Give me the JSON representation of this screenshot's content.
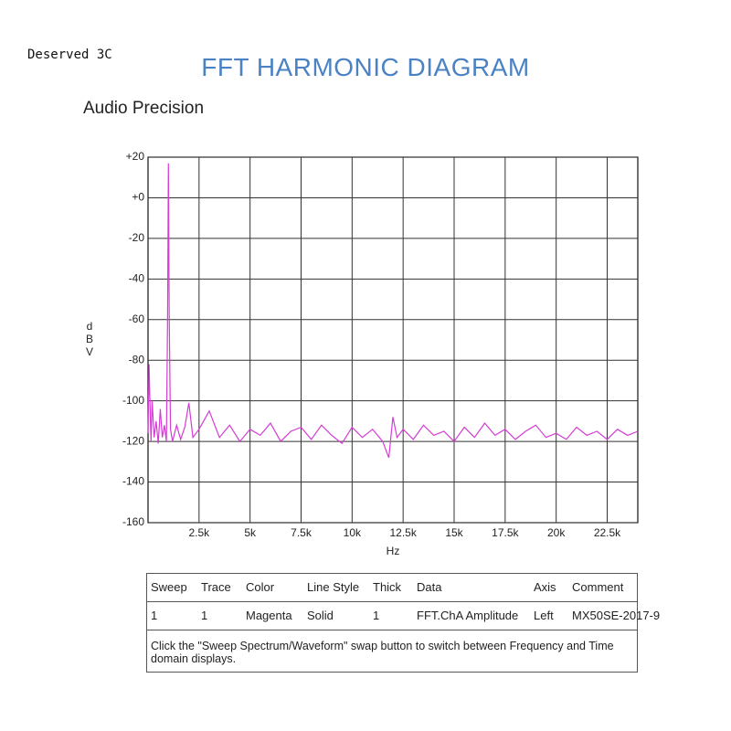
{
  "watermark": "Deserved 3C",
  "chart_data": {
    "type": "line",
    "title": "FFT  HARMONIC DIAGRAM",
    "subtitle": "Audio Precision",
    "x_label": "Hz",
    "y_label": "dBV",
    "color": "#d43cd4",
    "grid": true,
    "xlim": [
      0,
      24000
    ],
    "ylim": [
      -160,
      20
    ],
    "xticks": [
      {
        "value": 2500,
        "label": "2.5k"
      },
      {
        "value": 5000,
        "label": "5k"
      },
      {
        "value": 7500,
        "label": "7.5k"
      },
      {
        "value": 10000,
        "label": "10k"
      },
      {
        "value": 12500,
        "label": "12.5k"
      },
      {
        "value": 15000,
        "label": "15k"
      },
      {
        "value": 17500,
        "label": "17.5k"
      },
      {
        "value": 20000,
        "label": "20k"
      },
      {
        "value": 22500,
        "label": "22.5k"
      }
    ],
    "yticks": [
      {
        "value": 20,
        "label": "+20"
      },
      {
        "value": 0,
        "label": "+0"
      },
      -20,
      -40,
      -60,
      -80,
      -100,
      -120,
      -140,
      -160
    ],
    "x": [
      0,
      50,
      100,
      150,
      200,
      300,
      400,
      500,
      600,
      700,
      800,
      900,
      960,
      1000,
      1040,
      1100,
      1200,
      1400,
      1600,
      1800,
      2000,
      2200,
      2500,
      3000,
      3500,
      4000,
      4500,
      5000,
      5500,
      6000,
      6500,
      7000,
      7500,
      8000,
      8500,
      9000,
      9500,
      10000,
      10500,
      11000,
      11500,
      11800,
      12000,
      12200,
      12500,
      13000,
      13500,
      14000,
      14500,
      15000,
      15500,
      16000,
      16500,
      17000,
      17500,
      18000,
      18500,
      19000,
      19500,
      20000,
      20500,
      21000,
      21500,
      22000,
      22500,
      23000,
      23500,
      24000
    ],
    "values": [
      -116,
      -82,
      -102,
      -120,
      -100,
      -118,
      -110,
      -121,
      -104,
      -118,
      -112,
      -120,
      -60,
      17,
      -60,
      -114,
      -120,
      -112,
      -119,
      -113,
      -101,
      -118,
      -114,
      -105,
      -118,
      -112,
      -120,
      -114,
      -117,
      -111,
      -120,
      -115,
      -113,
      -119,
      -112,
      -117,
      -121,
      -113,
      -118,
      -114,
      -120,
      -128,
      -108,
      -118,
      -114,
      -119,
      -112,
      -117,
      -115,
      -120,
      -113,
      -118,
      -111,
      -117,
      -114,
      -119,
      -115,
      -112,
      -118,
      -116,
      -119,
      -113,
      -117,
      -115,
      -119,
      -114,
      -117,
      -115
    ]
  },
  "table": {
    "header": [
      "Sweep",
      "Trace",
      "Color",
      "Line Style",
      "Thick",
      "Data",
      "Axis",
      "Comment"
    ],
    "rows": [
      [
        "1",
        "1",
        "Magenta",
        "Solid",
        "1",
        "FFT.ChA Amplitude",
        "Left",
        "MX50SE-2017-9"
      ]
    ],
    "note": "Click the \"Sweep Spectrum/Waveform\" swap button to switch between Frequency and Time domain displays."
  }
}
